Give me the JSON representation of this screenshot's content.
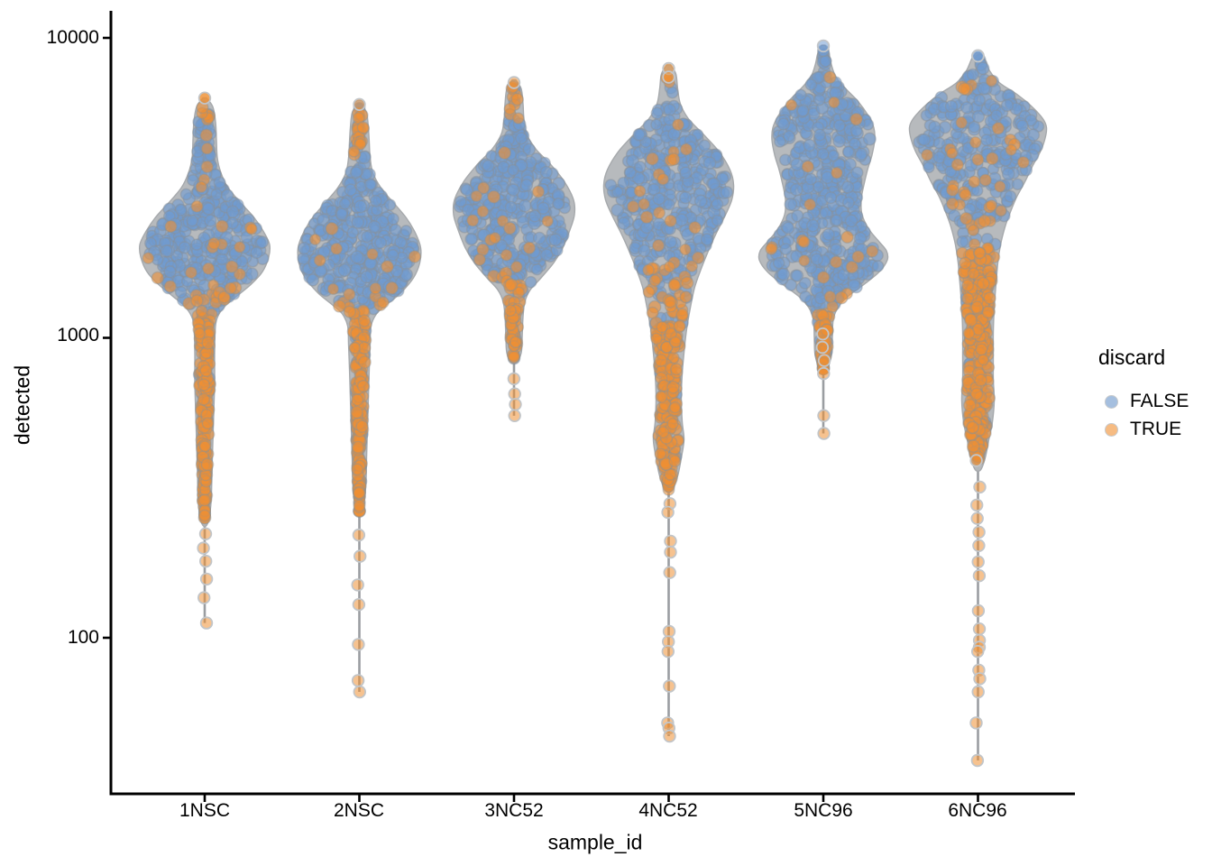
{
  "chart_data": {
    "type": "violin-scatter",
    "title": "",
    "xlabel": "sample_id",
    "ylabel": "detected",
    "y_scale": "log10",
    "grid": "off",
    "y_tick_labels": [
      "10000",
      "1000",
      "100"
    ],
    "y_tick_values": [
      10000,
      1000,
      100
    ],
    "ylim": [
      30,
      12000
    ],
    "categories": [
      "1NSC",
      "2NSC",
      "3NC52",
      "4NC52",
      "5NC96",
      "6NC96"
    ],
    "legend": {
      "title": "discard",
      "position": "right",
      "items": [
        {
          "label": "FALSE",
          "color": "#a5bfdf"
        },
        {
          "label": "TRUE",
          "color": "#f6bb82"
        }
      ]
    },
    "colors": {
      "false_point": "#6f9bd1",
      "true_point": "#ef8f33",
      "point_fill_opacity": 0.6,
      "point_stroke": "#8a9097",
      "tail_point_stroke": "#c2c5c8",
      "violin_fill": "#b5b8bb",
      "violin_stroke": "#a6a9ac",
      "spine": "#9a9da1",
      "axis": "#000000",
      "text": "#000000"
    },
    "violins": [
      {
        "sample": "1NSC",
        "seed": 101,
        "n_body_points": 500,
        "profile": [
          [
            3.8,
            2
          ],
          [
            3.77,
            9
          ],
          [
            3.72,
            12
          ],
          [
            3.66,
            13
          ],
          [
            3.6,
            14
          ],
          [
            3.55,
            18
          ],
          [
            3.5,
            26
          ],
          [
            3.45,
            40
          ],
          [
            3.4,
            55
          ],
          [
            3.35,
            66
          ],
          [
            3.31,
            72
          ],
          [
            3.27,
            71
          ],
          [
            3.22,
            64
          ],
          [
            3.18,
            52
          ],
          [
            3.14,
            36
          ],
          [
            3.11,
            24
          ],
          [
            3.08,
            16
          ],
          [
            3.04,
            12
          ],
          [
            2.95,
            11
          ],
          [
            2.85,
            11
          ],
          [
            2.75,
            10
          ],
          [
            2.65,
            9
          ],
          [
            2.55,
            8
          ],
          [
            2.45,
            7
          ],
          [
            2.38,
            3
          ]
        ],
        "column": {
          "from": 3.05,
          "to": 2.4,
          "n": 115,
          "p_orange": 0.92
        },
        "tail_values": [
          222,
          199,
          180,
          157,
          136,
          112
        ],
        "top_points": [
          {
            "value": 6300,
            "discard": true
          }
        ],
        "orange_rules": {
          "above": 3.73,
          "p_above": 0.7,
          "ramp_hi": 3.18,
          "ramp_lo": 3.04,
          "p_base": 0.05,
          "p_low": 0.9
        }
      },
      {
        "sample": "2NSC",
        "seed": 102,
        "n_body_points": 470,
        "profile": [
          [
            3.78,
            2
          ],
          [
            3.75,
            8
          ],
          [
            3.7,
            10
          ],
          [
            3.65,
            11
          ],
          [
            3.6,
            12
          ],
          [
            3.55,
            15
          ],
          [
            3.5,
            24
          ],
          [
            3.45,
            38
          ],
          [
            3.4,
            52
          ],
          [
            3.35,
            62
          ],
          [
            3.3,
            68
          ],
          [
            3.25,
            67
          ],
          [
            3.2,
            60
          ],
          [
            3.15,
            46
          ],
          [
            3.11,
            30
          ],
          [
            3.08,
            19
          ],
          [
            3.04,
            13
          ],
          [
            2.98,
            12
          ],
          [
            2.9,
            11
          ],
          [
            2.8,
            10
          ],
          [
            2.7,
            9
          ],
          [
            2.6,
            8
          ],
          [
            2.5,
            7
          ],
          [
            2.42,
            3
          ]
        ],
        "column": {
          "from": 3.02,
          "to": 2.42,
          "n": 105,
          "p_orange": 0.9
        },
        "tail_values": [
          220,
          187,
          150,
          129,
          95,
          72,
          66
        ],
        "top_points": [
          {
            "value": 6000,
            "discard": true
          }
        ],
        "orange_rules": {
          "above": 3.6,
          "p_above": 0.7,
          "ramp_hi": 3.16,
          "ramp_lo": 3.02,
          "p_base": 0.05,
          "p_low": 0.9
        }
      },
      {
        "sample": "3NC52",
        "seed": 103,
        "n_body_points": 420,
        "profile": [
          [
            3.86,
            2
          ],
          [
            3.83,
            8
          ],
          [
            3.78,
            10
          ],
          [
            3.73,
            11
          ],
          [
            3.68,
            14
          ],
          [
            3.63,
            24
          ],
          [
            3.58,
            40
          ],
          [
            3.52,
            56
          ],
          [
            3.46,
            66
          ],
          [
            3.41,
            67
          ],
          [
            3.36,
            62
          ],
          [
            3.3,
            54
          ],
          [
            3.25,
            44
          ],
          [
            3.2,
            30
          ],
          [
            3.16,
            18
          ],
          [
            3.12,
            12
          ],
          [
            3.07,
            10
          ],
          [
            3.0,
            9
          ],
          [
            2.95,
            8
          ],
          [
            2.92,
            3
          ]
        ],
        "column": {
          "from": 3.1,
          "to": 2.93,
          "n": 30,
          "p_orange": 0.9
        },
        "tail_values": [
          730,
          650,
          600,
          550
        ],
        "top_points": [
          {
            "value": 7100,
            "discard": true
          }
        ],
        "orange_rules": {
          "above": 3.72,
          "p_above": 0.75,
          "ramp_hi": 3.24,
          "ramp_lo": 3.08,
          "p_base": 0.05,
          "p_low": 0.9
        }
      },
      {
        "sample": "4NC52",
        "seed": 104,
        "n_body_points": 480,
        "profile": [
          [
            3.91,
            2
          ],
          [
            3.88,
            8
          ],
          [
            3.83,
            10
          ],
          [
            3.78,
            13
          ],
          [
            3.73,
            22
          ],
          [
            3.68,
            38
          ],
          [
            3.62,
            56
          ],
          [
            3.56,
            68
          ],
          [
            3.51,
            72
          ],
          [
            3.46,
            70
          ],
          [
            3.41,
            63
          ],
          [
            3.35,
            53
          ],
          [
            3.29,
            44
          ],
          [
            3.23,
            36
          ],
          [
            3.17,
            29
          ],
          [
            3.1,
            24
          ],
          [
            3.03,
            20
          ],
          [
            2.95,
            17
          ],
          [
            2.88,
            15
          ],
          [
            2.8,
            14
          ],
          [
            2.72,
            15
          ],
          [
            2.66,
            17
          ],
          [
            2.6,
            14
          ],
          [
            2.54,
            10
          ],
          [
            2.49,
            3
          ]
        ],
        "column": {
          "from": 3.05,
          "to": 2.5,
          "n": 135,
          "p_orange": 0.93
        },
        "tail_values": [
          280,
          262,
          210,
          193,
          165,
          105,
          97,
          90,
          69,
          52,
          50,
          47
        ],
        "top_points": [
          {
            "value": 7900,
            "discard": true
          },
          {
            "value": 7400,
            "discard": true
          }
        ],
        "orange_rules": {
          "above": 3.84,
          "p_above": 0.8,
          "ramp_hi": 3.3,
          "ramp_lo": 3.0,
          "p_base": 0.06,
          "p_low": 0.9
        }
      },
      {
        "sample": "5NC96",
        "seed": 105,
        "n_body_points": 530,
        "profile": [
          [
            3.975,
            2
          ],
          [
            3.95,
            6
          ],
          [
            3.91,
            9
          ],
          [
            3.87,
            14
          ],
          [
            3.83,
            25
          ],
          [
            3.79,
            38
          ],
          [
            3.74,
            50
          ],
          [
            3.7,
            56
          ],
          [
            3.66,
            57
          ],
          [
            3.61,
            54
          ],
          [
            3.56,
            49
          ],
          [
            3.51,
            45
          ],
          [
            3.46,
            42
          ],
          [
            3.41,
            43
          ],
          [
            3.36,
            51
          ],
          [
            3.32,
            62
          ],
          [
            3.29,
            70
          ],
          [
            3.26,
            71
          ],
          [
            3.22,
            62
          ],
          [
            3.18,
            46
          ],
          [
            3.14,
            28
          ],
          [
            3.1,
            16
          ],
          [
            3.06,
            11
          ],
          [
            3.0,
            10
          ],
          [
            2.94,
            9
          ],
          [
            2.89,
            3
          ]
        ],
        "column": {
          "from": 3.08,
          "to": 2.89,
          "n": 36,
          "p_orange": 0.85
        },
        "tail_values": [
          1030,
          930,
          840,
          760,
          550,
          480
        ],
        "top_points": [
          {
            "value": 9400,
            "discard": false
          }
        ],
        "orange_rules": {
          "above": null,
          "p_above": 0,
          "ramp_hi": 3.18,
          "ramp_lo": 3.04,
          "p_base": 0.05,
          "p_low": 0.85
        }
      },
      {
        "sample": "6NC96",
        "seed": 106,
        "n_body_points": 430,
        "profile": [
          [
            3.95,
            2
          ],
          [
            3.93,
            7
          ],
          [
            3.89,
            13
          ],
          [
            3.85,
            24
          ],
          [
            3.81,
            44
          ],
          [
            3.77,
            60
          ],
          [
            3.73,
            72
          ],
          [
            3.7,
            76
          ],
          [
            3.66,
            74
          ],
          [
            3.62,
            69
          ],
          [
            3.57,
            60
          ],
          [
            3.52,
            52
          ],
          [
            3.47,
            43
          ],
          [
            3.42,
            36
          ],
          [
            3.37,
            30
          ],
          [
            3.31,
            25
          ],
          [
            3.25,
            22
          ],
          [
            3.18,
            20
          ],
          [
            3.1,
            18
          ],
          [
            3.02,
            17
          ],
          [
            2.94,
            17
          ],
          [
            2.86,
            17
          ],
          [
            2.79,
            18
          ],
          [
            2.72,
            16
          ],
          [
            2.66,
            12
          ],
          [
            2.6,
            8
          ],
          [
            2.56,
            3
          ]
        ],
        "column": {
          "from": 3.3,
          "to": 2.6,
          "n": 230,
          "p_orange": 0.9
        },
        "tail_values": [
          390,
          318,
          277,
          250,
          225,
          203,
          179,
          161,
          123,
          107,
          98,
          93,
          90,
          78,
          73,
          66,
          52,
          39
        ],
        "top_points": [
          {
            "value": 8700,
            "discard": false
          }
        ],
        "orange_rules": {
          "above": null,
          "p_above": 0,
          "ramp_hi": 3.52,
          "ramp_lo": 3.1,
          "p_base": 0.07,
          "p_low": 0.9
        }
      }
    ]
  }
}
